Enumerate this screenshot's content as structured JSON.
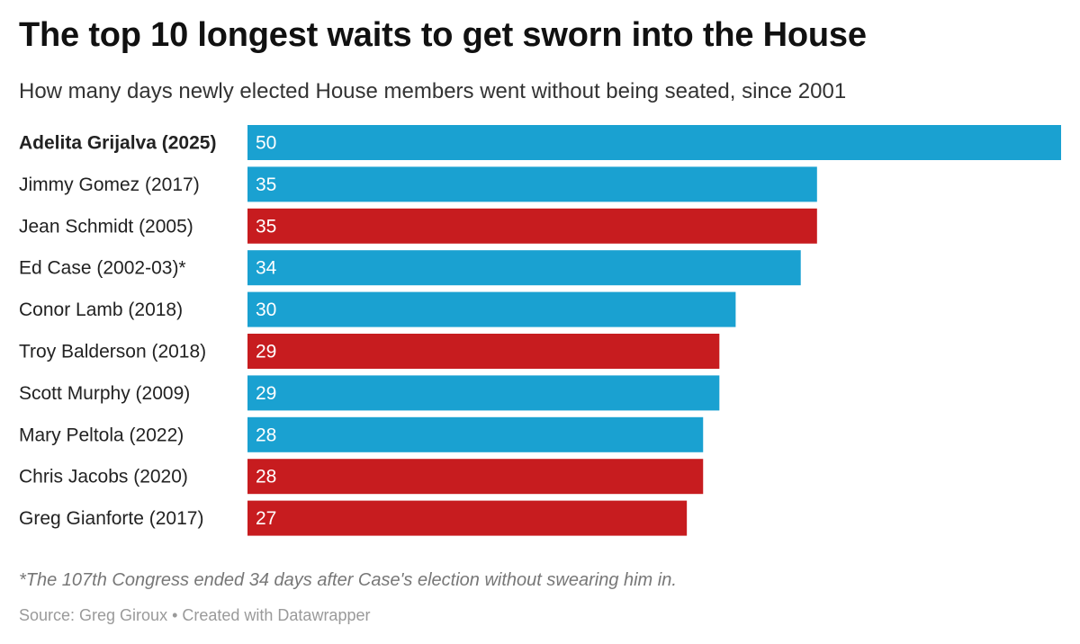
{
  "header": {
    "title": "The top 10 longest waits to get sworn into the House",
    "subtitle": "How many days newly elected House members went without being seated, since 2001"
  },
  "colors": {
    "blue": "#1aa1d1",
    "red": "#c71c1f"
  },
  "chart_data": {
    "type": "bar",
    "orientation": "horizontal",
    "categories": [
      "Adelita Grijalva (2025)",
      "Jimmy Gomez (2017)",
      "Jean Schmidt (2005)",
      "Ed Case (2002-03)*",
      "Conor Lamb (2018)",
      "Troy Balderson (2018)",
      "Scott Murphy (2009)",
      "Mary Peltola (2022)",
      "Chris Jacobs (2020)",
      "Greg Gianforte (2017)"
    ],
    "values": [
      50,
      35,
      35,
      34,
      30,
      29,
      29,
      28,
      28,
      27
    ],
    "bar_colors": [
      "blue",
      "blue",
      "red",
      "blue",
      "blue",
      "red",
      "blue",
      "blue",
      "red",
      "red"
    ],
    "highlighted": [
      true,
      false,
      false,
      false,
      false,
      false,
      false,
      false,
      false,
      false
    ],
    "xlim": [
      0,
      50
    ],
    "grid": false,
    "data_labels": true
  },
  "footer": {
    "footnote": "*The 107th Congress ended 34 days after Case's election without swearing him in.",
    "source": "Source: Greg Giroux • Created with Datawrapper"
  }
}
